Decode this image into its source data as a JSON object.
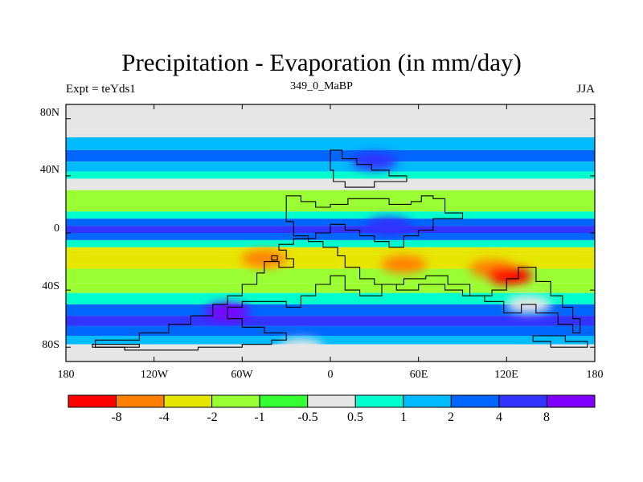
{
  "title": "Precipitation - Evaporation (in mm/day)",
  "experiment_label": "Expt = teYds1",
  "period_label": "349_0_MaBP",
  "season_label": "JJA",
  "y_ticks": [
    "80N",
    "40N",
    "0",
    "40S",
    "80S"
  ],
  "x_ticks": [
    "180",
    "120W",
    "60W",
    "0",
    "60E",
    "120E",
    "180"
  ],
  "colorbar": {
    "colors": [
      "#ff0000",
      "#ff8000",
      "#e6e600",
      "#99ff33",
      "#33ff33",
      "#e6e6e6",
      "#00ffcc",
      "#00bbff",
      "#0066ff",
      "#3333ff",
      "#8000ff"
    ],
    "labels": [
      "-8",
      "-4",
      "-2",
      "-1",
      "-0.5",
      "0.5",
      "1",
      "2",
      "4",
      "8"
    ]
  },
  "chart_data": {
    "type": "heatmap",
    "title": "Precipitation - Evaporation (in mm/day)",
    "xlabel": "",
    "ylabel": "",
    "xlim": [
      -180,
      180
    ],
    "ylim": [
      -90,
      90
    ],
    "x_tick_values": [
      -180,
      -120,
      -60,
      0,
      60,
      120,
      180
    ],
    "y_tick_values": [
      80,
      40,
      0,
      -40,
      -80
    ],
    "levels": [
      -8,
      -4,
      -2,
      -1,
      -0.5,
      0.5,
      1,
      2,
      4,
      8
    ],
    "zonal_bands_lat_to_value": [
      [
        90,
        0
      ],
      [
        73,
        0
      ],
      [
        67,
        1.5
      ],
      [
        58,
        2.5
      ],
      [
        50,
        1.5
      ],
      [
        43,
        0.7
      ],
      [
        38,
        0
      ],
      [
        30,
        -1.5
      ],
      [
        22,
        -1.5
      ],
      [
        15,
        0.8
      ],
      [
        10,
        3
      ],
      [
        5,
        6
      ],
      [
        0,
        3
      ],
      [
        -5,
        0.5
      ],
      [
        -10,
        -2.5
      ],
      [
        -15,
        -3
      ],
      [
        -25,
        -2
      ],
      [
        -35,
        -1.2
      ],
      [
        -42,
        0.8
      ],
      [
        -50,
        3
      ],
      [
        -58,
        6
      ],
      [
        -65,
        3
      ],
      [
        -72,
        1
      ],
      [
        -78,
        0
      ],
      [
        -90,
        0
      ]
    ],
    "anomalies": [
      {
        "lon": -45,
        "lat": -18,
        "value": -5
      },
      {
        "lon": 50,
        "lat": -22,
        "value": -5
      },
      {
        "lon": 110,
        "lat": -25,
        "value": -5
      },
      {
        "lon": 122,
        "lat": -30,
        "value": -9
      },
      {
        "lon": -70,
        "lat": -55,
        "value": 10
      },
      {
        "lon": 30,
        "lat": 50,
        "value": 5
      },
      {
        "lon": 40,
        "lat": 5,
        "value": 5
      },
      {
        "lon": 135,
        "lat": -50,
        "value": 0
      },
      {
        "lon": -20,
        "lat": -80,
        "value": 0
      }
    ],
    "landmasses": [
      {
        "name": "northern-block",
        "lonlat": [
          [
            0,
            58
          ],
          [
            8,
            58
          ],
          [
            8,
            52
          ],
          [
            18,
            52
          ],
          [
            18,
            48
          ],
          [
            28,
            48
          ],
          [
            28,
            44
          ],
          [
            40,
            44
          ],
          [
            40,
            40
          ],
          [
            52,
            40
          ],
          [
            52,
            36
          ],
          [
            30,
            36
          ],
          [
            30,
            32
          ],
          [
            10,
            32
          ],
          [
            10,
            36
          ],
          [
            2,
            36
          ],
          [
            2,
            44
          ],
          [
            0,
            44
          ]
        ]
      },
      {
        "name": "central-landmass",
        "lonlat": [
          [
            -30,
            26
          ],
          [
            -20,
            26
          ],
          [
            -20,
            22
          ],
          [
            -10,
            22
          ],
          [
            -10,
            18
          ],
          [
            0,
            18
          ],
          [
            0,
            20
          ],
          [
            12,
            20
          ],
          [
            12,
            24
          ],
          [
            40,
            24
          ],
          [
            40,
            20
          ],
          [
            55,
            20
          ],
          [
            55,
            22
          ],
          [
            62,
            22
          ],
          [
            62,
            26
          ],
          [
            70,
            26
          ],
          [
            70,
            24
          ],
          [
            78,
            24
          ],
          [
            78,
            14
          ],
          [
            90,
            14
          ],
          [
            90,
            10
          ],
          [
            70,
            10
          ],
          [
            70,
            2
          ],
          [
            60,
            2
          ],
          [
            60,
            -2
          ],
          [
            50,
            -2
          ],
          [
            50,
            -10
          ],
          [
            40,
            -10
          ],
          [
            40,
            -6
          ],
          [
            30,
            -6
          ],
          [
            30,
            -2
          ],
          [
            20,
            -2
          ],
          [
            20,
            2
          ],
          [
            10,
            2
          ],
          [
            10,
            6
          ],
          [
            0,
            6
          ],
          [
            0,
            0
          ],
          [
            -10,
            0
          ],
          [
            -10,
            -4
          ],
          [
            -25,
            -4
          ],
          [
            -25,
            -8
          ],
          [
            -35,
            -8
          ],
          [
            -35,
            -12
          ],
          [
            -30,
            -12
          ],
          [
            -30,
            -18
          ],
          [
            -25,
            -18
          ],
          [
            -25,
            -24
          ],
          [
            -35,
            -24
          ],
          [
            -35,
            -20
          ],
          [
            -45,
            -20
          ],
          [
            -45,
            -28
          ],
          [
            -50,
            -28
          ],
          [
            -50,
            -36
          ],
          [
            -60,
            -36
          ],
          [
            -60,
            -44
          ],
          [
            -70,
            -44
          ],
          [
            -70,
            -50
          ],
          [
            -80,
            -50
          ],
          [
            -80,
            -58
          ],
          [
            -95,
            -58
          ],
          [
            -95,
            -64
          ],
          [
            -110,
            -64
          ],
          [
            -110,
            -70
          ],
          [
            -130,
            -70
          ],
          [
            -130,
            -75
          ],
          [
            -160,
            -75
          ],
          [
            -160,
            -80
          ],
          [
            -140,
            -80
          ],
          [
            -140,
            -82
          ],
          [
            -90,
            -82
          ],
          [
            -90,
            -80
          ],
          [
            -60,
            -80
          ],
          [
            -60,
            -78
          ],
          [
            -40,
            -78
          ],
          [
            -40,
            -75
          ],
          [
            -30,
            -75
          ],
          [
            -30,
            -70
          ],
          [
            -45,
            -70
          ],
          [
            -45,
            -66
          ],
          [
            -60,
            -66
          ],
          [
            -60,
            -60
          ],
          [
            -70,
            -60
          ],
          [
            -70,
            -52
          ],
          [
            -60,
            -52
          ],
          [
            -60,
            -48
          ],
          [
            -30,
            -48
          ],
          [
            -30,
            -52
          ],
          [
            -20,
            -52
          ],
          [
            -20,
            -44
          ],
          [
            -10,
            -44
          ],
          [
            -10,
            -36
          ],
          [
            0,
            -36
          ],
          [
            0,
            -30
          ],
          [
            10,
            -30
          ],
          [
            10,
            -40
          ],
          [
            20,
            -40
          ],
          [
            20,
            -44
          ],
          [
            35,
            -44
          ],
          [
            35,
            -36
          ],
          [
            50,
            -36
          ],
          [
            50,
            -32
          ],
          [
            65,
            -32
          ],
          [
            65,
            -30
          ],
          [
            80,
            -30
          ],
          [
            80,
            -36
          ],
          [
            95,
            -36
          ],
          [
            95,
            -44
          ],
          [
            110,
            -44
          ],
          [
            110,
            -40
          ],
          [
            120,
            -40
          ],
          [
            120,
            -32
          ],
          [
            128,
            -32
          ],
          [
            128,
            -24
          ],
          [
            140,
            -24
          ],
          [
            140,
            -34
          ],
          [
            150,
            -34
          ],
          [
            150,
            -44
          ],
          [
            158,
            -44
          ],
          [
            158,
            -52
          ],
          [
            165,
            -52
          ],
          [
            165,
            -60
          ],
          [
            170,
            -60
          ],
          [
            170,
            -70
          ],
          [
            165,
            -70
          ],
          [
            165,
            -64
          ],
          [
            155,
            -64
          ],
          [
            155,
            -56
          ],
          [
            140,
            -56
          ],
          [
            140,
            -50
          ],
          [
            130,
            -50
          ],
          [
            130,
            -56
          ],
          [
            118,
            -56
          ],
          [
            118,
            -48
          ],
          [
            105,
            -48
          ],
          [
            105,
            -44
          ],
          [
            90,
            -44
          ],
          [
            90,
            -40
          ],
          [
            78,
            -40
          ],
          [
            78,
            -36
          ],
          [
            60,
            -36
          ],
          [
            60,
            -40
          ],
          [
            45,
            -40
          ],
          [
            45,
            -36
          ],
          [
            30,
            -36
          ],
          [
            30,
            -32
          ],
          [
            20,
            -32
          ],
          [
            20,
            -24
          ],
          [
            10,
            -24
          ],
          [
            10,
            -16
          ],
          [
            5,
            -16
          ],
          [
            5,
            -10
          ],
          [
            -5,
            -10
          ],
          [
            -5,
            -6
          ],
          [
            -15,
            -6
          ],
          [
            -15,
            -2
          ],
          [
            -25,
            -2
          ],
          [
            -25,
            8
          ],
          [
            -30,
            8
          ]
        ]
      },
      {
        "name": "small-island",
        "lonlat": [
          [
            -40,
            -16
          ],
          [
            -36,
            -16
          ],
          [
            -36,
            -19
          ],
          [
            -40,
            -19
          ]
        ]
      },
      {
        "name": "southern-rim",
        "lonlat": [
          [
            -162,
            -78
          ],
          [
            -130,
            -78
          ],
          [
            -130,
            -80
          ],
          [
            -162,
            -80
          ]
        ]
      },
      {
        "name": "south-east-fragment",
        "lonlat": [
          [
            138,
            -72
          ],
          [
            160,
            -72
          ],
          [
            160,
            -76
          ],
          [
            175,
            -76
          ],
          [
            175,
            -80
          ],
          [
            150,
            -80
          ],
          [
            150,
            -76
          ],
          [
            138,
            -76
          ]
        ]
      }
    ]
  }
}
